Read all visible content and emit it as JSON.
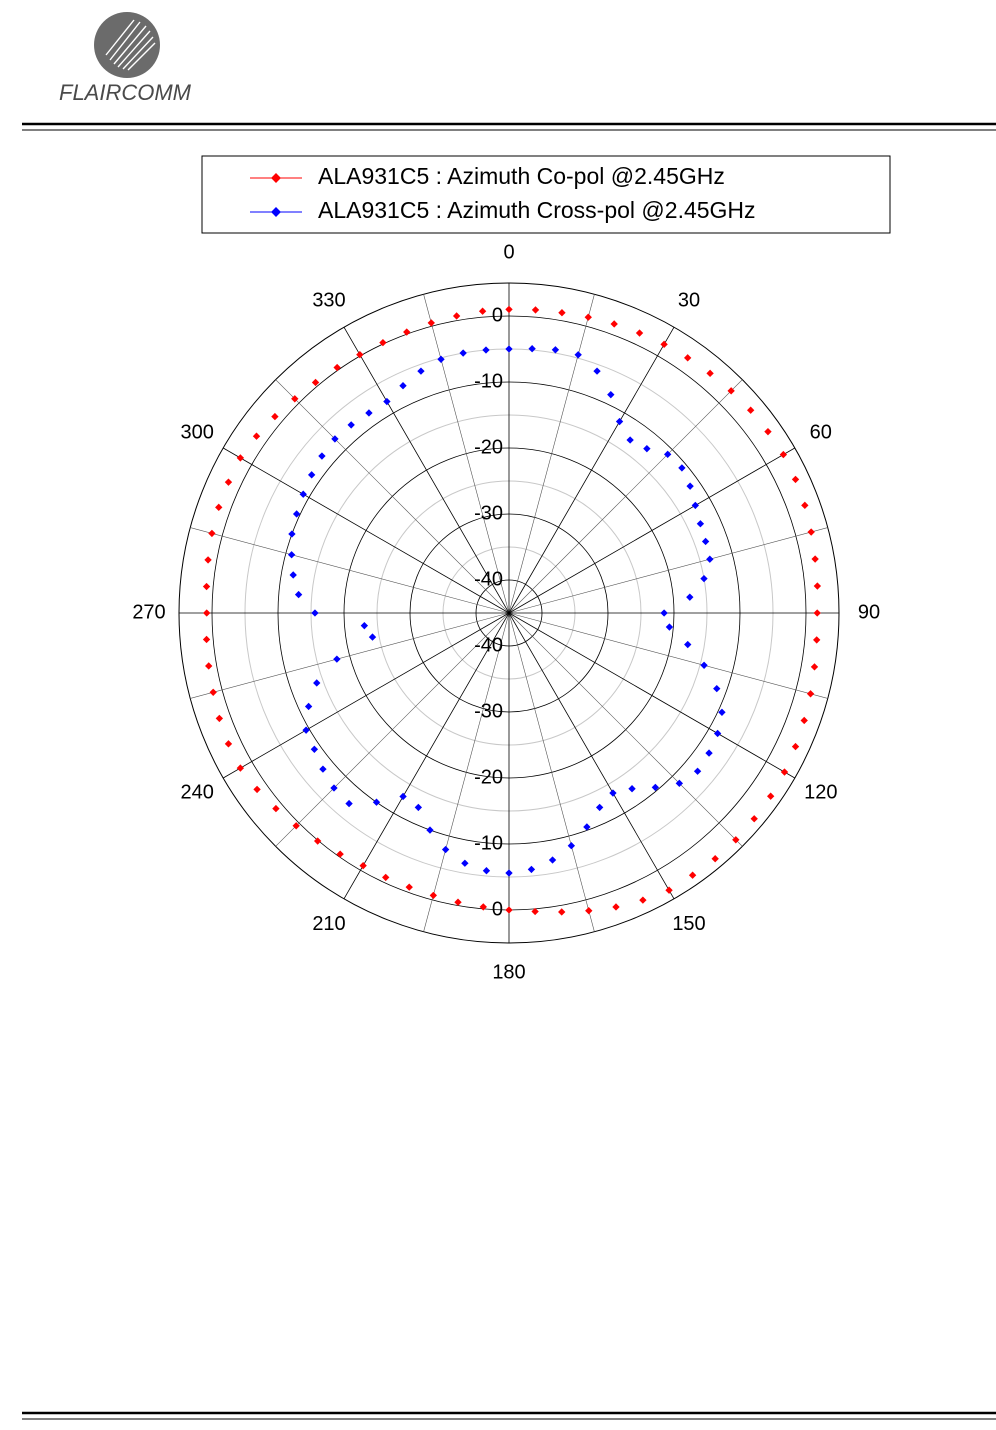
{
  "header": {
    "logo_text": "FLAIRCOMM"
  },
  "chart_data": {
    "type": "polar",
    "theta": [
      0,
      5,
      10,
      15,
      20,
      25,
      30,
      35,
      40,
      45,
      50,
      55,
      60,
      65,
      70,
      75,
      80,
      85,
      90,
      95,
      100,
      105,
      110,
      115,
      120,
      125,
      130,
      135,
      140,
      145,
      150,
      155,
      160,
      165,
      170,
      175,
      180,
      185,
      190,
      195,
      200,
      205,
      210,
      215,
      220,
      225,
      230,
      235,
      240,
      245,
      250,
      255,
      260,
      265,
      270,
      275,
      280,
      285,
      290,
      295,
      300,
      305,
      310,
      315,
      320,
      325,
      330,
      335,
      340,
      345,
      350,
      355
    ],
    "series": [
      {
        "name": "ALA931C5 : Azimuth Co-pol @2.45GHz",
        "color": "#ff0000",
        "values": [
          1.0,
          1.1,
          1.2,
          1.4,
          1.6,
          1.8,
          2.0,
          2.2,
          2.4,
          2.6,
          2.8,
          2.9,
          3.0,
          2.9,
          2.7,
          2.4,
          2.1,
          1.9,
          1.7,
          1.8,
          2.0,
          2.3,
          2.6,
          2.9,
          3.2,
          3.4,
          3.5,
          3.6,
          3.6,
          3.5,
          3.5,
          3.0,
          2.4,
          1.7,
          1.0,
          0.4,
          0.0,
          -0.3,
          -0.5,
          -0.7,
          -0.8,
          -0.8,
          -0.8,
          -0.4,
          0.1,
          0.6,
          1.1,
          1.6,
          2.0,
          1.9,
          1.7,
          1.4,
          1.2,
          1.0,
          0.8,
          1.0,
          1.3,
          1.6,
          1.8,
          1.9,
          2.0,
          1.7,
          1.3,
          0.9,
          0.6,
          0.4,
          0.2,
          0.2,
          0.3,
          0.5,
          0.7,
          0.9
        ]
      },
      {
        "name": "ALA931C5 : Azimuth Cross-pol @2.45GHz",
        "color": "#0000ff",
        "values": [
          -5.0,
          -4.8,
          -4.5,
          -4.5,
          -6,
          -8.5,
          -11.5,
          -13,
          -12.5,
          -11,
          -10.8,
          -11.5,
          -12.4,
          -13,
          -13.3,
          -13.5,
          -15,
          -17.5,
          -21.5,
          -20.6,
          -17.5,
          -14.4,
          -11.5,
          -9.4,
          -8.5,
          -8,
          -7.7,
          -8.5,
          -10.5,
          -12.5,
          -13.5,
          -12.5,
          -10.5,
          -8.5,
          -7,
          -6,
          -5.6,
          -5.8,
          -6.5,
          -7.9,
          -10,
          -12.5,
          -12.9,
          -10,
          -7.3,
          -7.5,
          -8.2,
          -9,
          -9.5,
          -11.5,
          -14,
          -18,
          -24,
          -23,
          -15.6,
          -13,
          -11.8,
          -10.9,
          -10,
          -9.5,
          -9,
          -8.5,
          -8,
          -7.7,
          -7.8,
          -8,
          -8,
          -7,
          -6,
          -5.2,
          -5,
          -5
        ]
      }
    ],
    "rlim": [
      -45,
      5
    ],
    "rticks": [
      -40,
      -30,
      -20,
      -10,
      0
    ],
    "rticks_minor": [
      -35,
      -25,
      -15,
      -5
    ],
    "thetaticks": [
      0,
      30,
      60,
      90,
      120,
      150,
      180,
      210,
      240,
      270,
      300,
      330
    ],
    "thetaticks_minor": [
      15,
      45,
      75,
      105,
      135,
      165,
      195,
      225,
      255,
      285,
      315,
      345
    ],
    "direction": "clockwise",
    "zero_location": "top",
    "grid": true,
    "legend": "top"
  }
}
